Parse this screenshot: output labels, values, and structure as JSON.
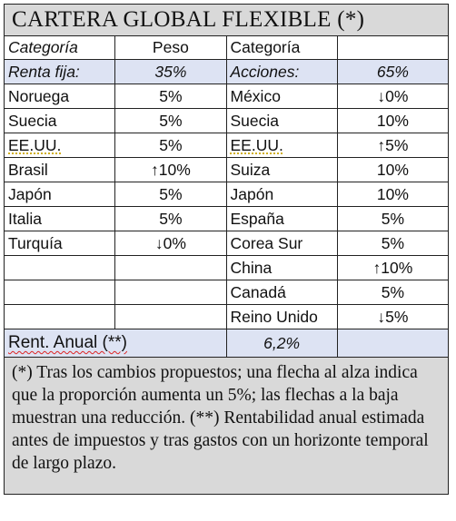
{
  "title": "CARTERA GLOBAL FLEXIBLE (*)",
  "headers": {
    "category_left": "Categoría",
    "weight": "Peso",
    "category_right": "Categoría"
  },
  "groups": {
    "left_label": "Renta fija:",
    "left_value": "35%",
    "right_label": "Acciones:",
    "right_value": "65%"
  },
  "rows": [
    {
      "left_name": "Noruega",
      "left_weight": "5%",
      "right_name": "México",
      "right_weight": "↓0%"
    },
    {
      "left_name": "Suecia",
      "left_weight": "5%",
      "right_name": "Suecia",
      "right_weight": "10%"
    },
    {
      "left_name": "EE.UU.",
      "left_weight": "5%",
      "right_name": "EE.UU.",
      "right_weight": "↑5%"
    },
    {
      "left_name": "Brasil",
      "left_weight": "↑10%",
      "right_name": "Suiza",
      "right_weight": "10%"
    },
    {
      "left_name": "Japón",
      "left_weight": "5%",
      "right_name": "Japón",
      "right_weight": "10%"
    },
    {
      "left_name": "Italia",
      "left_weight": "5%",
      "right_name": "España",
      "right_weight": "5%"
    },
    {
      "left_name": "Turquía",
      "left_weight": "↓0%",
      "right_name": "Corea Sur",
      "right_weight": "5%"
    },
    {
      "left_name": "",
      "left_weight": "",
      "right_name": "China",
      "right_weight": "↑10%"
    },
    {
      "left_name": "",
      "left_weight": "",
      "right_name": "Canadá",
      "right_weight": "5%"
    },
    {
      "left_name": "",
      "left_weight": "",
      "right_name": "Reino Unido",
      "right_weight": "↓5%"
    }
  ],
  "annual_return": {
    "label": "Rent. Anual (**)",
    "value": "6,2%"
  },
  "note": "(*) Tras los cambios propuestos; una flecha al alza indica que la proporción aumenta un 5%; las flechas a la baja muestran una reducción. (**) Rentabilidad anual estimada antes de impuestos y tras gastos con un horizonte temporal de largo plazo."
}
